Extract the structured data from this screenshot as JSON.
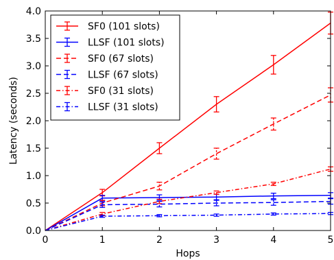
{
  "chart_data": {
    "type": "line",
    "title": "",
    "xlabel": "Hops",
    "ylabel": "Latency (seconds)",
    "xlim": [
      0,
      5
    ],
    "ylim": [
      0.0,
      4.0
    ],
    "x_ticks": [
      "0",
      "1",
      "2",
      "3",
      "4",
      "5"
    ],
    "y_ticks": [
      "0.0",
      "0.5",
      "1.0",
      "1.5",
      "2.0",
      "2.5",
      "3.0",
      "3.5",
      "4.0"
    ],
    "grid": false,
    "legend_position": "top-left",
    "x": [
      0,
      1,
      2,
      3,
      4,
      5
    ],
    "series": [
      {
        "name": "SF0 (101 slots)",
        "color": "#ff0000",
        "style": "solid",
        "values": [
          0.0,
          0.69,
          1.5,
          2.3,
          3.02,
          3.78
        ],
        "err": [
          0.0,
          0.06,
          0.1,
          0.14,
          0.17,
          0.2
        ]
      },
      {
        "name": "LLSF (101 slots)",
        "color": "#0000ff",
        "style": "solid",
        "values": [
          0.0,
          0.59,
          0.6,
          0.61,
          0.63,
          0.64
        ],
        "err": [
          0.0,
          0.05,
          0.05,
          0.05,
          0.05,
          0.05
        ]
      },
      {
        "name": "SF0 (67 slots)",
        "color": "#ff0000",
        "style": "dashed",
        "values": [
          0.0,
          0.5,
          0.81,
          1.4,
          1.94,
          2.47
        ],
        "err": [
          0.0,
          0.05,
          0.07,
          0.1,
          0.11,
          0.13
        ]
      },
      {
        "name": "LLSF (67 slots)",
        "color": "#0000ff",
        "style": "dashed",
        "values": [
          0.0,
          0.47,
          0.48,
          0.5,
          0.51,
          0.53
        ],
        "err": [
          0.0,
          0.05,
          0.05,
          0.05,
          0.05,
          0.05
        ]
      },
      {
        "name": "SF0 (31 slots)",
        "color": "#ff0000",
        "style": "dashdot",
        "values": [
          0.0,
          0.3,
          0.53,
          0.69,
          0.85,
          1.12
        ],
        "err": [
          0.0,
          0.03,
          0.04,
          0.03,
          0.03,
          0.04
        ]
      },
      {
        "name": "LLSF (31 slots)",
        "color": "#0000ff",
        "style": "dashdot",
        "values": [
          0.0,
          0.26,
          0.27,
          0.28,
          0.3,
          0.31
        ],
        "err": [
          0.0,
          0.02,
          0.02,
          0.02,
          0.02,
          0.02
        ]
      }
    ]
  }
}
